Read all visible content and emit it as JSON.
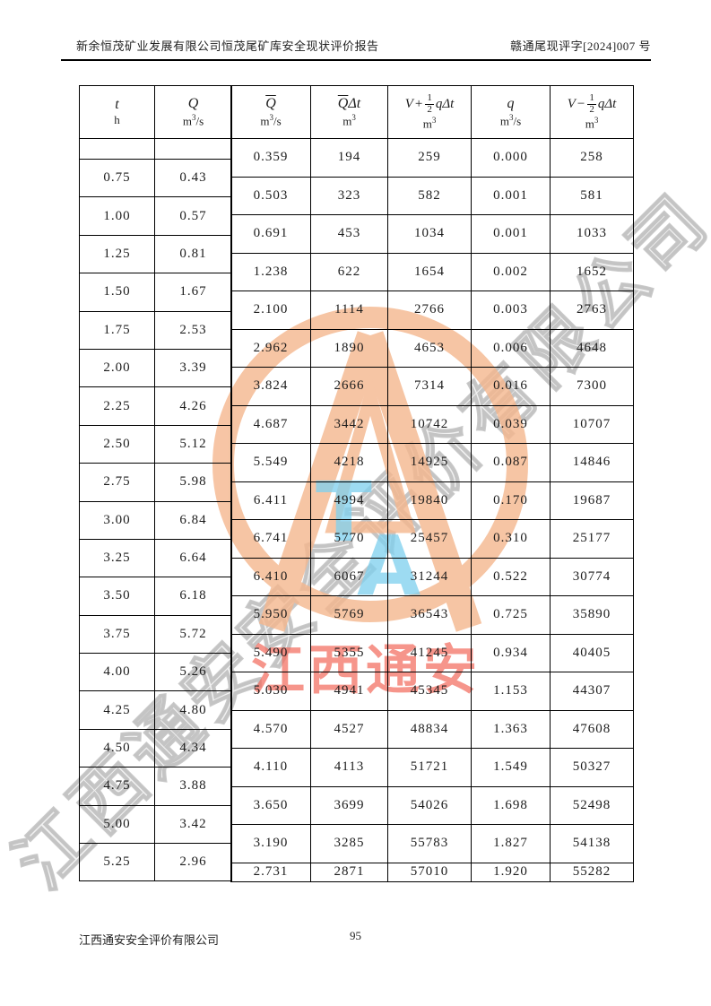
{
  "header": {
    "title_left": "新余恒茂矿业发展有限公司恒茂尾矿库安全现状评价报告",
    "doc_number_right": "赣通尾现评字[2024]007 号"
  },
  "table": {
    "columns": [
      {
        "symbol": "t",
        "unit_base": "h",
        "unit_sup": "",
        "unit_suffix": ""
      },
      {
        "symbol": "Q",
        "unit_base": "m",
        "unit_sup": "3",
        "unit_suffix": "/s"
      },
      {
        "symbol": "Q",
        "unit_base": "m",
        "unit_sup": "3",
        "unit_suffix": "/s"
      },
      {
        "symbol": "Q",
        "symbol2": "Δt",
        "unit_base": "m",
        "unit_sup": "3",
        "unit_suffix": ""
      },
      {
        "formula": {
          "lead": "V",
          "op": "+",
          "num": "1",
          "den": "2",
          "tail": "qΔt"
        },
        "unit_base": "m",
        "unit_sup": "3",
        "unit_suffix": ""
      },
      {
        "symbol": "q",
        "unit_base": "m",
        "unit_sup": "3",
        "unit_suffix": "/s"
      },
      {
        "formula": {
          "lead": "V",
          "op": "−",
          "num": "1",
          "den": "2",
          "tail": "qΔt"
        },
        "unit_base": "m",
        "unit_sup": "3",
        "unit_suffix": ""
      }
    ],
    "left_rows": [
      [
        "",
        ""
      ],
      [
        "0.75",
        "0.43"
      ],
      [
        "1.00",
        "0.57"
      ],
      [
        "1.25",
        "0.81"
      ],
      [
        "1.50",
        "1.67"
      ],
      [
        "1.75",
        "2.53"
      ],
      [
        "2.00",
        "3.39"
      ],
      [
        "2.25",
        "4.26"
      ],
      [
        "2.50",
        "5.12"
      ],
      [
        "2.75",
        "5.98"
      ],
      [
        "3.00",
        "6.84"
      ],
      [
        "3.25",
        "6.64"
      ],
      [
        "3.50",
        "6.18"
      ],
      [
        "3.75",
        "5.72"
      ],
      [
        "4.00",
        "5.26"
      ],
      [
        "4.25",
        "4.80"
      ],
      [
        "4.50",
        "4.34"
      ],
      [
        "4.75",
        "3.88"
      ],
      [
        "5.00",
        "3.42"
      ],
      [
        "5.25",
        "2.96"
      ]
    ],
    "right_rows": [
      [
        "0.359",
        "194",
        "259",
        "0.000",
        "258"
      ],
      [
        "0.503",
        "323",
        "582",
        "0.001",
        "581"
      ],
      [
        "0.691",
        "453",
        "1034",
        "0.001",
        "1033"
      ],
      [
        "1.238",
        "622",
        "1654",
        "0.002",
        "1652"
      ],
      [
        "2.100",
        "1114",
        "2766",
        "0.003",
        "2763"
      ],
      [
        "2.962",
        "1890",
        "4653",
        "0.006",
        "4648"
      ],
      [
        "3.824",
        "2666",
        "7314",
        "0.016",
        "7300"
      ],
      [
        "4.687",
        "3442",
        "10742",
        "0.039",
        "10707"
      ],
      [
        "5.549",
        "4218",
        "14925",
        "0.087",
        "14846"
      ],
      [
        "6.411",
        "4994",
        "19840",
        "0.170",
        "19687"
      ],
      [
        "6.741",
        "5770",
        "25457",
        "0.310",
        "25177"
      ],
      [
        "6.410",
        "6067",
        "31244",
        "0.522",
        "30774"
      ],
      [
        "5.950",
        "5769",
        "36543",
        "0.725",
        "35890"
      ],
      [
        "5.490",
        "5355",
        "41245",
        "0.934",
        "40405"
      ],
      [
        "5.030",
        "4941",
        "45345",
        "1.153",
        "44307"
      ],
      [
        "4.570",
        "4527",
        "48834",
        "1.363",
        "47608"
      ],
      [
        "4.110",
        "4113",
        "51721",
        "1.549",
        "50327"
      ],
      [
        "3.650",
        "3699",
        "54026",
        "1.698",
        "52498"
      ],
      [
        "3.190",
        "3285",
        "55783",
        "1.827",
        "54138"
      ],
      [
        "2.731",
        "2871",
        "57010",
        "1.920",
        "55282"
      ]
    ]
  },
  "watermark": {
    "diagonal_text": "江西通安安全评价有限公司",
    "red_text": "江西通安",
    "logo_letter_top": "T",
    "logo_letter_bottom": "A",
    "ring_color": "#f5b78e",
    "blue_color": "#80d0ee",
    "red_color": "#f26c5e",
    "gray_color": "#c9c9c9"
  },
  "footer": {
    "company": "江西通安安全评价有限公司",
    "page_number": "95"
  }
}
